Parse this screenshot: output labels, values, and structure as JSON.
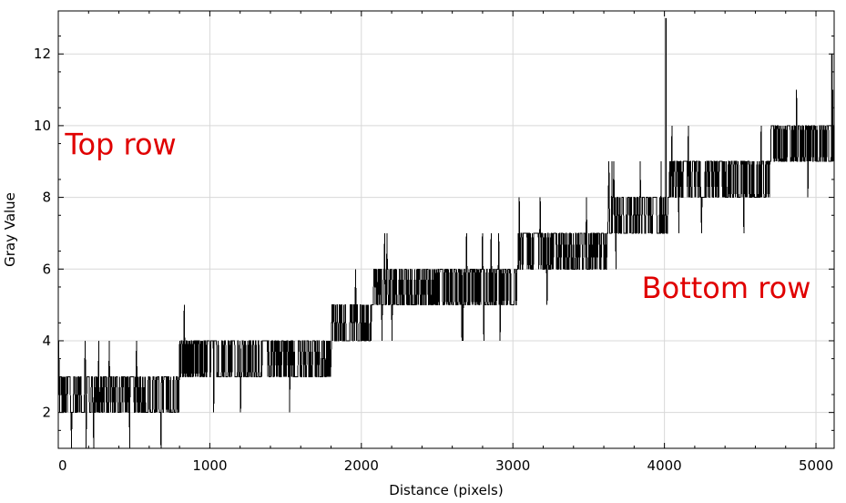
{
  "chart_data": {
    "type": "line",
    "title": "",
    "xlabel": "Distance (pixels)",
    "ylabel": "Gray Value",
    "xlim": [
      0,
      5120
    ],
    "ylim": [
      1,
      13.2
    ],
    "xticks": [
      0,
      1000,
      2000,
      3000,
      4000,
      5000
    ],
    "xtick_labels": [
      "0",
      "1000",
      "2000",
      "3000",
      "4000",
      "5000"
    ],
    "yticks": [
      2,
      4,
      6,
      8,
      10,
      12
    ],
    "ytick_labels": [
      "2",
      "4",
      "6",
      "8",
      "10",
      "12"
    ],
    "grid": true,
    "line_color": "#000000",
    "annotation_color": "#e00000",
    "annotations": [
      {
        "text": "Top row",
        "x": 20,
        "y": 9.5
      },
      {
        "text": "Bottom row",
        "x": 3850,
        "y": 5.5
      }
    ],
    "series": [
      {
        "name": "",
        "trend": {
          "x": [
            0,
            450,
            1150,
            1550,
            1800,
            2000,
            2150,
            2700,
            3350,
            3900,
            4150,
            4700,
            5120
          ],
          "y": [
            2.5,
            2.5,
            3.5,
            3.5,
            4.0,
            4.5,
            5.5,
            5.5,
            6.5,
            7.5,
            8.5,
            9.0,
            9.5
          ]
        },
        "spikes": [
          {
            "x": 4010,
            "y": 13.0
          },
          {
            "x": 5105,
            "y": 12.0
          },
          {
            "x": 5110,
            "y": 11.0
          }
        ]
      }
    ]
  }
}
